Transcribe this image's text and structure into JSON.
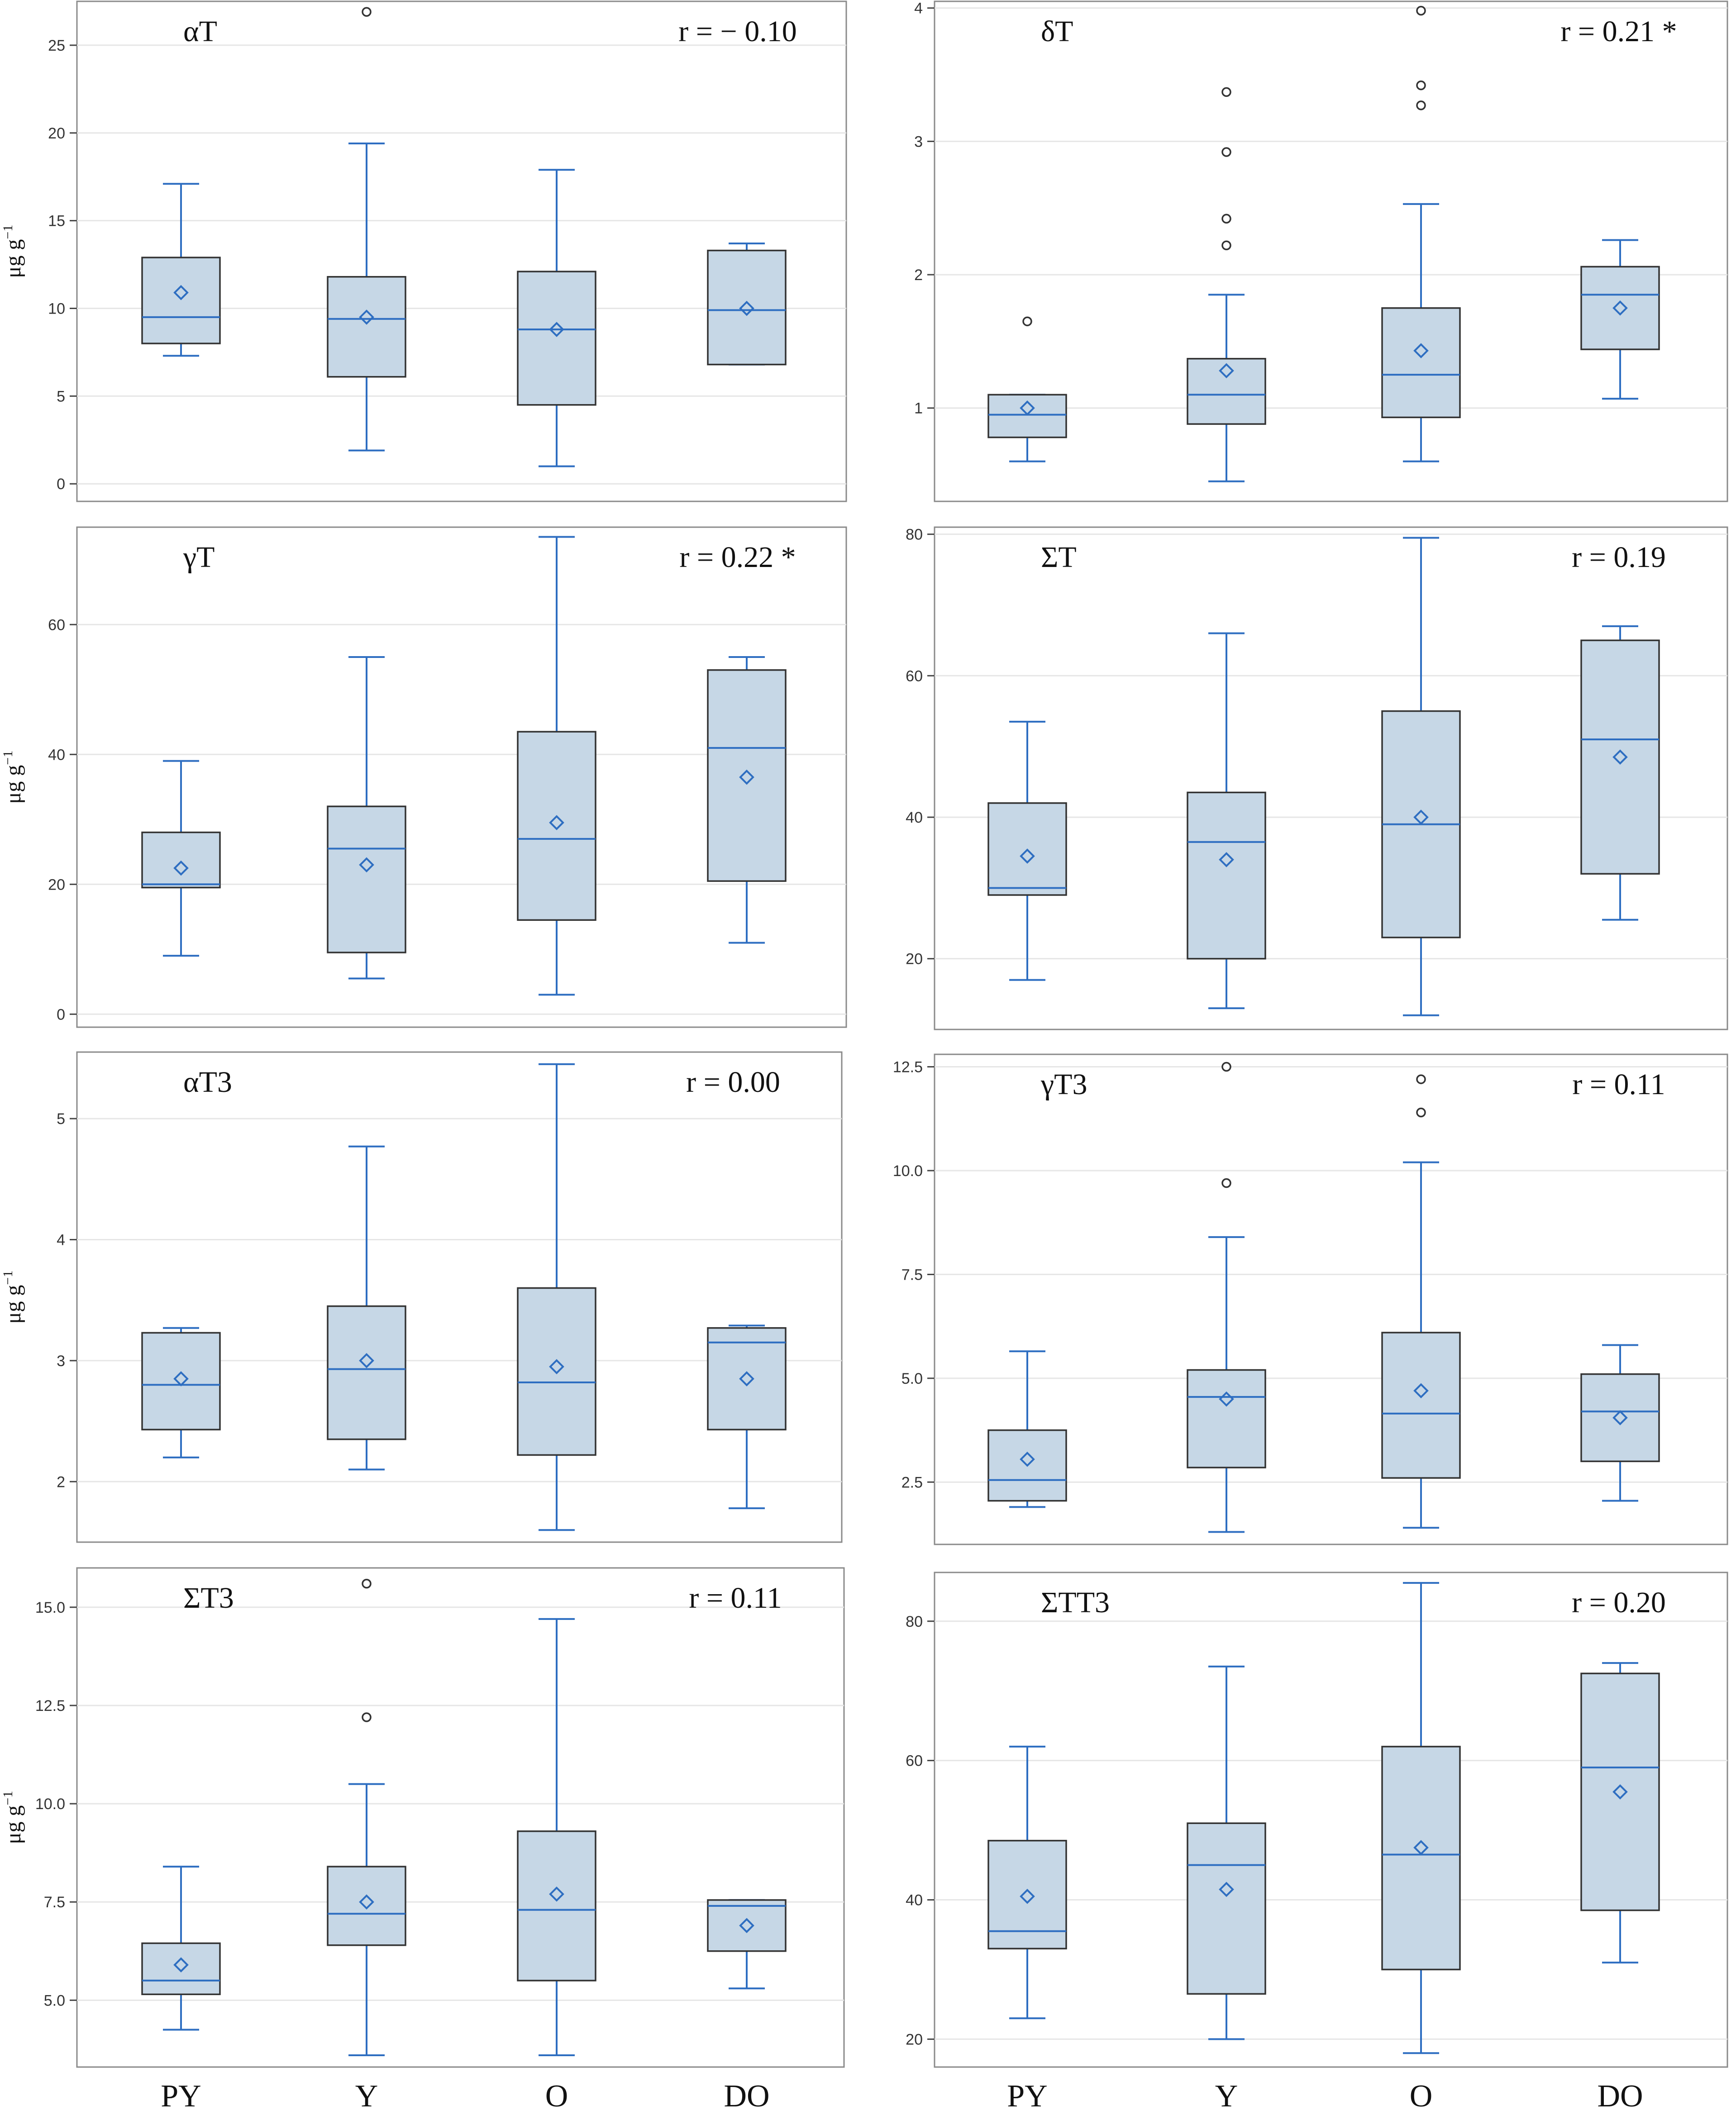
{
  "x_labels": [
    "PY",
    "Y",
    "O",
    "DO"
  ],
  "y_unit_label": {
    "text": "μg g",
    "sup": "−1"
  },
  "chart_data": [
    {
      "type": "box",
      "title": "αT",
      "r_label": "r = − 0.10",
      "ylabel_visible": true,
      "ylim": [
        -1,
        27.5
      ],
      "ticks": [
        0,
        5,
        10,
        15,
        20,
        25
      ],
      "tick_labels": [
        "0",
        "5",
        "10",
        "15",
        "20",
        "25"
      ],
      "boxes": [
        {
          "group": "PY",
          "min": 7.3,
          "q1": 8.0,
          "median": 9.5,
          "q3": 12.9,
          "max": 17.1,
          "mean": 10.9,
          "outliers": []
        },
        {
          "group": "Y",
          "min": 1.9,
          "q1": 6.1,
          "median": 9.4,
          "q3": 11.8,
          "max": 19.4,
          "mean": 9.5,
          "outliers": [
            26.9
          ]
        },
        {
          "group": "O",
          "min": 1.0,
          "q1": 4.5,
          "median": 8.8,
          "q3": 12.1,
          "max": 17.9,
          "mean": 8.8,
          "outliers": []
        },
        {
          "group": "DO",
          "min": 6.8,
          "q1": 6.8,
          "median": 9.9,
          "q3": 13.3,
          "max": 13.7,
          "mean": 10.0,
          "outliers": []
        }
      ]
    },
    {
      "type": "box",
      "title": "δT",
      "r_label": "r = 0.21 *",
      "ylabel_visible": false,
      "ylim": [
        0.3,
        4.05
      ],
      "ticks": [
        1,
        2,
        3,
        4
      ],
      "tick_labels": [
        "1",
        "2",
        "3",
        "4"
      ],
      "boxes": [
        {
          "group": "PY",
          "min": 0.6,
          "q1": 0.78,
          "median": 0.95,
          "q3": 1.1,
          "max": 1.1,
          "mean": 1.0,
          "outliers": [
            1.65
          ]
        },
        {
          "group": "Y",
          "min": 0.45,
          "q1": 0.88,
          "median": 1.1,
          "q3": 1.37,
          "max": 1.85,
          "mean": 1.28,
          "outliers": [
            2.22,
            2.42,
            2.92,
            3.37
          ]
        },
        {
          "group": "O",
          "min": 0.6,
          "q1": 0.93,
          "median": 1.25,
          "q3": 1.75,
          "max": 2.53,
          "mean": 1.43,
          "outliers": [
            3.27,
            3.42,
            3.98
          ]
        },
        {
          "group": "DO",
          "min": 1.07,
          "q1": 1.44,
          "median": 1.85,
          "q3": 2.06,
          "max": 2.26,
          "mean": 1.75,
          "outliers": []
        }
      ]
    },
    {
      "type": "box",
      "title": "γT",
      "r_label": "r = 0.22 *",
      "ylabel_visible": true,
      "ylim": [
        -2,
        75
      ],
      "ticks": [
        0,
        20,
        40,
        60
      ],
      "tick_labels": [
        "0",
        "20",
        "40",
        "60"
      ],
      "boxes": [
        {
          "group": "PY",
          "min": 9.0,
          "q1": 19.5,
          "median": 20.0,
          "q3": 28.0,
          "max": 39.0,
          "mean": 22.5,
          "outliers": []
        },
        {
          "group": "Y",
          "min": 5.5,
          "q1": 9.5,
          "median": 25.5,
          "q3": 32.0,
          "max": 55.0,
          "mean": 23.0,
          "outliers": []
        },
        {
          "group": "O",
          "min": 3.0,
          "q1": 14.5,
          "median": 27.0,
          "q3": 43.5,
          "max": 73.5,
          "mean": 29.5,
          "outliers": []
        },
        {
          "group": "DO",
          "min": 11.0,
          "q1": 20.5,
          "median": 41.0,
          "q3": 53.0,
          "max": 55.0,
          "mean": 36.5,
          "outliers": []
        }
      ]
    },
    {
      "type": "box",
      "title": "ΣT",
      "r_label": "r = 0.19",
      "ylabel_visible": false,
      "ylim": [
        10,
        81
      ],
      "ticks": [
        20,
        40,
        60,
        80
      ],
      "tick_labels": [
        "20",
        "40",
        "60",
        "80"
      ],
      "boxes": [
        {
          "group": "PY",
          "min": 17.0,
          "q1": 29.0,
          "median": 30.0,
          "q3": 42.0,
          "max": 53.5,
          "mean": 34.5,
          "outliers": []
        },
        {
          "group": "Y",
          "min": 13.0,
          "q1": 20.0,
          "median": 36.5,
          "q3": 43.5,
          "max": 66.0,
          "mean": 34.0,
          "outliers": []
        },
        {
          "group": "O",
          "min": 12.0,
          "q1": 23.0,
          "median": 39.0,
          "q3": 55.0,
          "max": 79.5,
          "mean": 40.0,
          "outliers": []
        },
        {
          "group": "DO",
          "min": 25.5,
          "q1": 32.0,
          "median": 51.0,
          "q3": 65.0,
          "max": 67.0,
          "mean": 48.5,
          "outliers": []
        }
      ]
    },
    {
      "type": "box",
      "title": "αT3",
      "r_label": "r = 0.00",
      "ylabel_visible": true,
      "ylim": [
        1.5,
        5.55
      ],
      "ticks": [
        2,
        3,
        4,
        5
      ],
      "tick_labels": [
        "2",
        "3",
        "4",
        "5"
      ],
      "boxes": [
        {
          "group": "PY",
          "min": 2.2,
          "q1": 2.43,
          "median": 2.8,
          "q3": 3.23,
          "max": 3.27,
          "mean": 2.85,
          "outliers": []
        },
        {
          "group": "Y",
          "min": 2.1,
          "q1": 2.35,
          "median": 2.93,
          "q3": 3.45,
          "max": 4.77,
          "mean": 3.0,
          "outliers": []
        },
        {
          "group": "O",
          "min": 1.6,
          "q1": 2.22,
          "median": 2.82,
          "q3": 3.6,
          "max": 5.45,
          "mean": 2.95,
          "outliers": []
        },
        {
          "group": "DO",
          "min": 1.78,
          "q1": 2.43,
          "median": 3.15,
          "q3": 3.27,
          "max": 3.29,
          "mean": 2.85,
          "outliers": []
        }
      ]
    },
    {
      "type": "box",
      "title": "γT3",
      "r_label": "r = 0.11",
      "ylabel_visible": false,
      "ylim": [
        1.0,
        12.8
      ],
      "ticks": [
        2.5,
        5.0,
        7.5,
        10.0,
        12.5
      ],
      "tick_labels": [
        "2.5",
        "5.0",
        "7.5",
        "10.0",
        "12.5"
      ],
      "boxes": [
        {
          "group": "PY",
          "min": 1.9,
          "q1": 2.05,
          "median": 2.55,
          "q3": 3.75,
          "max": 5.65,
          "mean": 3.05,
          "outliers": []
        },
        {
          "group": "Y",
          "min": 1.3,
          "q1": 2.85,
          "median": 4.55,
          "q3": 5.2,
          "max": 8.4,
          "mean": 4.5,
          "outliers": [
            9.7,
            12.5
          ]
        },
        {
          "group": "O",
          "min": 1.4,
          "q1": 2.6,
          "median": 4.15,
          "q3": 6.1,
          "max": 10.2,
          "mean": 4.7,
          "outliers": [
            11.4,
            12.2
          ]
        },
        {
          "group": "DO",
          "min": 2.05,
          "q1": 3.0,
          "median": 4.2,
          "q3": 5.1,
          "max": 5.8,
          "mean": 4.05,
          "outliers": []
        }
      ]
    },
    {
      "type": "box",
      "title": "ΣT3",
      "r_label": "r = 0.11",
      "ylabel_visible": true,
      "ylim": [
        3.3,
        16.0
      ],
      "ticks": [
        5.0,
        7.5,
        10.0,
        12.5,
        15.0
      ],
      "tick_labels": [
        "5.0",
        "7.5",
        "10.0",
        "12.5",
        "15.0"
      ],
      "boxes": [
        {
          "group": "PY",
          "min": 4.25,
          "q1": 5.15,
          "median": 5.5,
          "q3": 6.45,
          "max": 8.4,
          "mean": 5.9,
          "outliers": []
        },
        {
          "group": "Y",
          "min": 3.6,
          "q1": 6.4,
          "median": 7.2,
          "q3": 8.4,
          "max": 10.5,
          "mean": 7.5,
          "outliers": [
            12.2,
            15.6
          ]
        },
        {
          "group": "O",
          "min": 3.6,
          "q1": 5.5,
          "median": 7.3,
          "q3": 9.3,
          "max": 14.7,
          "mean": 7.7,
          "outliers": []
        },
        {
          "group": "DO",
          "min": 5.3,
          "q1": 6.25,
          "median": 7.4,
          "q3": 7.55,
          "max": 7.55,
          "mean": 6.9,
          "outliers": []
        }
      ]
    },
    {
      "type": "box",
      "title": "ΣTT3",
      "r_label": "r = 0.20",
      "ylabel_visible": false,
      "ylim": [
        16,
        87
      ],
      "ticks": [
        20,
        40,
        60,
        80
      ],
      "tick_labels": [
        "20",
        "40",
        "60",
        "80"
      ],
      "boxes": [
        {
          "group": "PY",
          "min": 23.0,
          "q1": 33.0,
          "median": 35.5,
          "q3": 48.5,
          "max": 62.0,
          "mean": 40.5,
          "outliers": []
        },
        {
          "group": "Y",
          "min": 20.0,
          "q1": 26.5,
          "median": 45.0,
          "q3": 51.0,
          "max": 73.5,
          "mean": 41.5,
          "outliers": []
        },
        {
          "group": "O",
          "min": 18.0,
          "q1": 30.0,
          "median": 46.5,
          "q3": 62.0,
          "max": 85.5,
          "mean": 47.5,
          "outliers": []
        },
        {
          "group": "DO",
          "min": 31.0,
          "q1": 38.5,
          "median": 59.0,
          "q3": 72.5,
          "max": 74.0,
          "mean": 55.5,
          "outliers": []
        }
      ]
    }
  ]
}
